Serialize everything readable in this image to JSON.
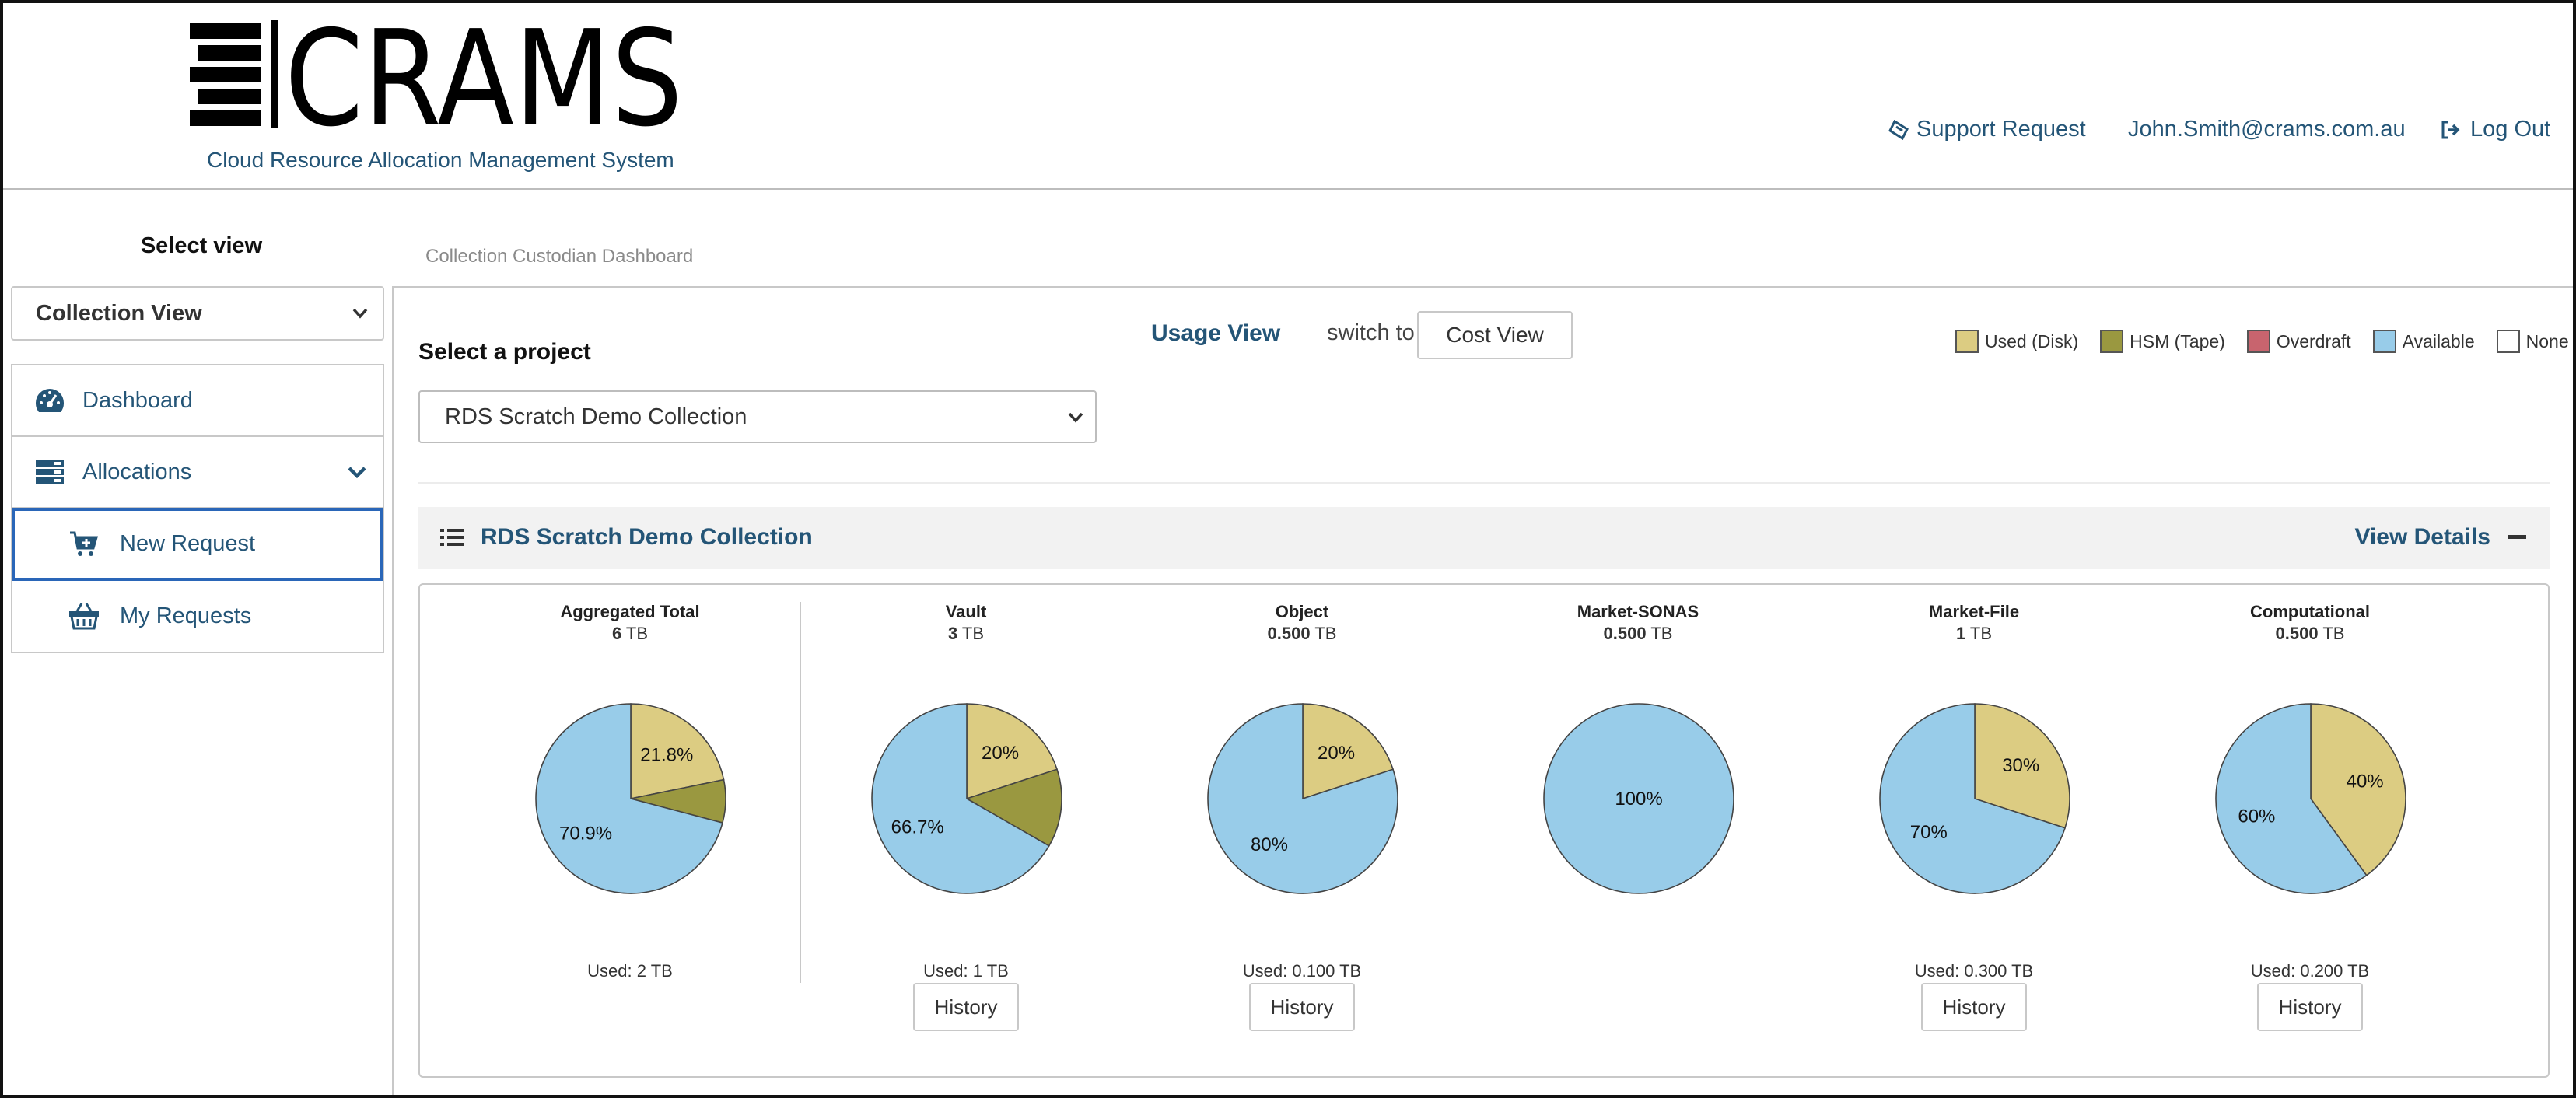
{
  "header": {
    "logo_text": "CRAMS",
    "tagline": "Cloud Resource Allocation Management System",
    "support_request": "Support Request",
    "user_email": "John.Smith@crams.com.au",
    "logout": "Log Out"
  },
  "sidebar": {
    "title": "Select view",
    "view_select": "Collection View",
    "items": [
      {
        "label": "Dashboard",
        "icon": "dashboard-icon"
      },
      {
        "label": "Allocations",
        "icon": "server-icon"
      },
      {
        "label": "New Request",
        "icon": "cart-plus-icon"
      },
      {
        "label": "My Requests",
        "icon": "basket-icon"
      }
    ]
  },
  "breadcrumb": "Collection Custodian Dashboard",
  "main": {
    "project_label": "Select a project",
    "project_select": "RDS Scratch Demo Collection",
    "usage_view": "Usage View",
    "switch_to": "switch to",
    "cost_view": "Cost View",
    "divider": "",
    "legend": [
      {
        "label": "Used (Disk)",
        "color": "#dccc82"
      },
      {
        "label": "HSM (Tape)",
        "color": "#9a9840"
      },
      {
        "label": "Overdraft",
        "color": "#c8646e"
      },
      {
        "label": "Available",
        "color": "#98cce9"
      },
      {
        "label": "None",
        "color": "#ffffff"
      }
    ]
  },
  "collection": {
    "title": "RDS Scratch Demo Collection",
    "view_details": "View Details",
    "history_label": "History"
  },
  "chart_data": [
    {
      "type": "pie",
      "title": "Aggregated Total",
      "total_value": "6",
      "total_unit": "TB",
      "used": "Used: 2 TB",
      "history": false,
      "slices": [
        {
          "name": "Used (Disk)",
          "value": 21.8,
          "label": "21.8%"
        },
        {
          "name": "HSM (Tape)",
          "value": 7.3,
          "label": ""
        },
        {
          "name": "Available",
          "value": 70.9,
          "label": "70.9%"
        }
      ]
    },
    {
      "type": "pie",
      "title": "Vault",
      "total_value": "3",
      "total_unit": "TB",
      "used": "Used: 1 TB",
      "history": true,
      "slices": [
        {
          "name": "Used (Disk)",
          "value": 20,
          "label": "20%"
        },
        {
          "name": "HSM (Tape)",
          "value": 13.3,
          "label": ""
        },
        {
          "name": "Available",
          "value": 66.7,
          "label": "66.7%"
        }
      ]
    },
    {
      "type": "pie",
      "title": "Object",
      "total_value": "0.500",
      "total_unit": "TB",
      "used": "Used: 0.100 TB",
      "history": true,
      "slices": [
        {
          "name": "Used (Disk)",
          "value": 20,
          "label": "20%"
        },
        {
          "name": "Available",
          "value": 80,
          "label": "80%"
        }
      ]
    },
    {
      "type": "pie",
      "title": "Market-SONAS",
      "total_value": "0.500",
      "total_unit": "TB",
      "used": "",
      "history": false,
      "slices": [
        {
          "name": "Available",
          "value": 100,
          "label": "100%"
        }
      ]
    },
    {
      "type": "pie",
      "title": "Market-File",
      "total_value": "1",
      "total_unit": "TB",
      "used": "Used: 0.300 TB",
      "history": true,
      "slices": [
        {
          "name": "Used (Disk)",
          "value": 30,
          "label": "30%"
        },
        {
          "name": "Available",
          "value": 70,
          "label": "70%"
        }
      ]
    },
    {
      "type": "pie",
      "title": "Computational",
      "total_value": "0.500",
      "total_unit": "TB",
      "used": "Used: 0.200 TB",
      "history": true,
      "slices": [
        {
          "name": "Used (Disk)",
          "value": 40,
          "label": "40%"
        },
        {
          "name": "Available",
          "value": 60,
          "label": "60%"
        }
      ]
    }
  ]
}
